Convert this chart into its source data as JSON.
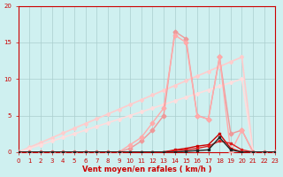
{
  "title": "",
  "xlabel": "Vent moyen/en rafales ( km/h )",
  "ylabel": "",
  "bg_color": "#cff0f0",
  "grid_color": "#aacece",
  "xlim": [
    0,
    23
  ],
  "ylim": [
    0,
    20
  ],
  "xticks": [
    0,
    1,
    2,
    3,
    4,
    5,
    6,
    7,
    8,
    9,
    10,
    11,
    12,
    13,
    14,
    15,
    16,
    17,
    18,
    19,
    20,
    21,
    22,
    23
  ],
  "yticks": [
    0,
    5,
    10,
    15,
    20
  ],
  "series": [
    {
      "x": [
        0,
        1,
        2,
        3,
        4,
        5,
        6,
        7,
        8,
        9,
        10,
        11,
        12,
        13,
        14,
        15,
        16,
        17,
        18,
        19,
        20,
        21,
        22,
        23
      ],
      "y": [
        0,
        0.65,
        1.3,
        1.95,
        2.6,
        3.25,
        3.9,
        4.55,
        5.2,
        5.85,
        6.5,
        7.15,
        7.8,
        8.45,
        9.1,
        9.75,
        10.4,
        11.05,
        11.7,
        12.35,
        13.0,
        0,
        0,
        0
      ],
      "color": "#ffcccc",
      "lw": 1.2,
      "marker": "D",
      "ms": 2.0,
      "zorder": 2
    },
    {
      "x": [
        0,
        1,
        2,
        3,
        4,
        5,
        6,
        7,
        8,
        9,
        10,
        11,
        12,
        13,
        14,
        15,
        16,
        17,
        18,
        19,
        20,
        21,
        22,
        23
      ],
      "y": [
        0,
        0.5,
        1.0,
        1.5,
        2.0,
        2.5,
        3.0,
        3.5,
        4.0,
        4.5,
        5.0,
        5.5,
        6.0,
        6.5,
        7.0,
        7.5,
        8.0,
        8.5,
        9.0,
        9.5,
        10.0,
        0,
        0,
        0
      ],
      "color": "#ffdddd",
      "lw": 1.2,
      "marker": "D",
      "ms": 2.0,
      "zorder": 2
    },
    {
      "x": [
        0,
        1,
        2,
        3,
        4,
        5,
        6,
        7,
        8,
        9,
        10,
        11,
        12,
        13,
        14,
        15,
        16,
        17,
        18,
        19,
        20,
        21,
        22,
        23
      ],
      "y": [
        0,
        0,
        0,
        0,
        0,
        0,
        0,
        0,
        0,
        0,
        0.5,
        1.5,
        3,
        5,
        16.5,
        15.5,
        5,
        4.5,
        13,
        2.5,
        3,
        0,
        0,
        0
      ],
      "color": "#ee9999",
      "lw": 1.0,
      "marker": "D",
      "ms": 2.5,
      "zorder": 3
    },
    {
      "x": [
        0,
        1,
        2,
        3,
        4,
        5,
        6,
        7,
        8,
        9,
        10,
        11,
        12,
        13,
        14,
        15,
        16,
        17,
        18,
        19,
        20,
        21,
        22,
        23
      ],
      "y": [
        0,
        0,
        0,
        0,
        0,
        0,
        0,
        0,
        0,
        0,
        1,
        2,
        4,
        6,
        16.0,
        15.0,
        5,
        4.5,
        13,
        0,
        3,
        0,
        0,
        0
      ],
      "color": "#ffaaaa",
      "lw": 1.0,
      "marker": "D",
      "ms": 2.5,
      "zorder": 3
    },
    {
      "x": [
        0,
        1,
        2,
        3,
        4,
        5,
        6,
        7,
        8,
        9,
        10,
        11,
        12,
        13,
        14,
        15,
        16,
        17,
        18,
        19,
        20,
        21,
        22,
        23
      ],
      "y": [
        0,
        0,
        0,
        0,
        0,
        0,
        0,
        0,
        0,
        0,
        0,
        0,
        0,
        0,
        0.3,
        0.5,
        0.8,
        1.0,
        2.5,
        0.5,
        0,
        0,
        0,
        0
      ],
      "color": "#cc0000",
      "lw": 1.0,
      "marker": "s",
      "ms": 2.0,
      "zorder": 6
    },
    {
      "x": [
        0,
        1,
        2,
        3,
        4,
        5,
        6,
        7,
        8,
        9,
        10,
        11,
        12,
        13,
        14,
        15,
        16,
        17,
        18,
        19,
        20,
        21,
        22,
        23
      ],
      "y": [
        0,
        0,
        0,
        0,
        0,
        0,
        0,
        0,
        0,
        0,
        0,
        0,
        0,
        0,
        0.2,
        0.3,
        0.5,
        0.8,
        1.5,
        1.2,
        0.3,
        0,
        0,
        0
      ],
      "color": "#dd2222",
      "lw": 1.0,
      "marker": "s",
      "ms": 2.0,
      "zorder": 6
    },
    {
      "x": [
        0,
        1,
        2,
        3,
        4,
        5,
        6,
        7,
        8,
        9,
        10,
        11,
        12,
        13,
        14,
        15,
        16,
        17,
        18,
        19,
        20,
        21,
        22,
        23
      ],
      "y": [
        0,
        0,
        0,
        0,
        0,
        0,
        0,
        0,
        0,
        0,
        0,
        0,
        0,
        0,
        0,
        0.1,
        0.2,
        0.3,
        2.0,
        0.3,
        0,
        0,
        0,
        0
      ],
      "color": "#222222",
      "lw": 1.0,
      "marker": "s",
      "ms": 2.0,
      "zorder": 7
    }
  ],
  "tick_fontsize": 5,
  "label_fontsize": 6,
  "tick_color": "#cc0000",
  "spine_color": "#cc0000"
}
